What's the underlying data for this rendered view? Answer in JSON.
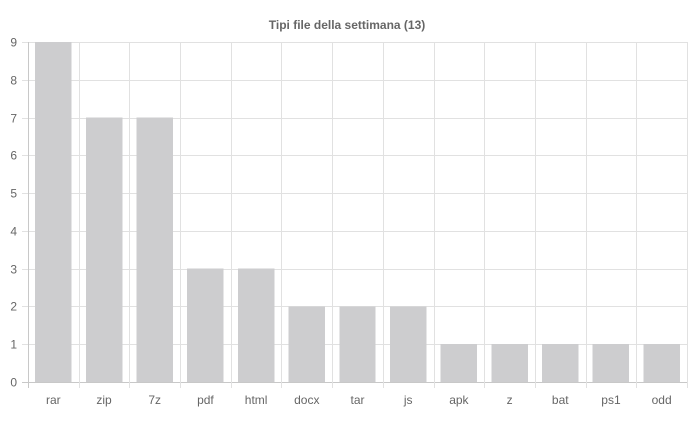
{
  "chart_data": {
    "type": "bar",
    "title": "Tipi file della settimana (13)",
    "categories": [
      "rar",
      "zip",
      "7z",
      "pdf",
      "html",
      "docx",
      "tar",
      "js",
      "apk",
      "z",
      "bat",
      "ps1",
      "odd"
    ],
    "values": [
      9,
      7,
      7,
      3,
      3,
      2,
      2,
      2,
      1,
      1,
      1,
      1,
      1
    ],
    "ylim": [
      0,
      9
    ],
    "yticks": [
      0,
      1,
      2,
      3,
      4,
      5,
      6,
      7,
      8,
      9
    ],
    "xlabel": "",
    "ylabel": "",
    "grid": true,
    "legend": "none",
    "colors": {
      "bar": "#cdcdcf",
      "grid": "#e1e1e1",
      "text": "#666666"
    }
  }
}
